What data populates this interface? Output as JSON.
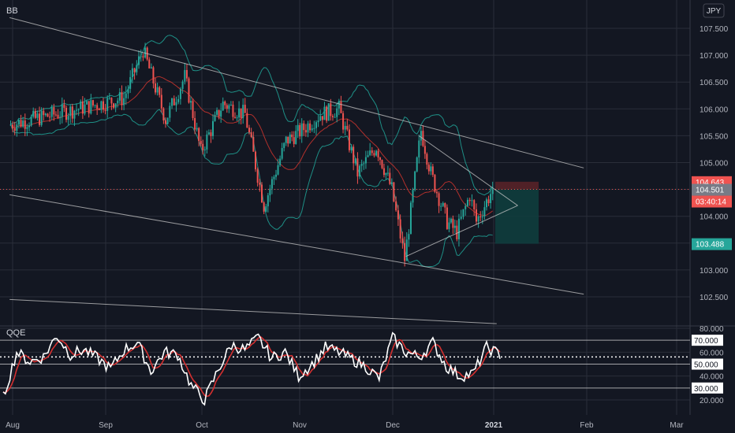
{
  "indicator_main": "BB",
  "indicator_sub": "QQE",
  "currency_button": "JPY",
  "colors": {
    "background": "#131722",
    "grid": "#2a2e39",
    "candle_up": "#26a69a",
    "candle_down": "#ef5350",
    "bb_band": "#1e8f86",
    "bb_basis": "#b2302c",
    "trendline": "#c8c8c8",
    "stop_zone": "#5c2328",
    "target_zone": "#0f3d3d",
    "qqe_fast": "#ffffff",
    "qqe_slow": "#d32f2f",
    "qqe_green": "#22c55e"
  },
  "price_axis": {
    "ticks": [
      "107.500",
      "107.000",
      "106.500",
      "106.000",
      "105.500",
      "105.000",
      "104.500",
      "104.000",
      "103.500",
      "103.000",
      "102.500"
    ],
    "labels": {
      "stop": "104.643",
      "current": "104.501",
      "countdown": "03:40:14",
      "target": "103.488"
    }
  },
  "qqe_axis": {
    "ticks": [
      "80.000",
      "60.000",
      "40.000",
      "20.000"
    ],
    "labels": [
      "70.000",
      "50.000",
      "30.000"
    ]
  },
  "time_axis": [
    "Aug",
    "Sep",
    "Oct",
    "Nov",
    "Dec",
    "2021",
    "Feb",
    "Mar"
  ],
  "chart_data": [
    {
      "type": "candlestick",
      "title": "BB",
      "x_range": [
        "Aug",
        "Mar"
      ],
      "ylim": [
        102.3,
        107.6
      ],
      "yticks": [
        102.5,
        103.0,
        103.5,
        104.0,
        104.5,
        105.0,
        105.5,
        106.0,
        106.5,
        107.0,
        107.5
      ],
      "key_points": [
        {
          "x": "Jul 31",
          "price": 105.7
        },
        {
          "x": "Aug 7",
          "price": 106.2
        },
        {
          "x": "Aug 13",
          "price": 107.1
        },
        {
          "x": "Aug 20",
          "price": 105.8
        },
        {
          "x": "Aug 26",
          "price": 106.6
        },
        {
          "x": "Sep 1",
          "price": 105.2
        },
        {
          "x": "Sep 8",
          "price": 106.1
        },
        {
          "x": "Sep 15",
          "price": 105.9
        },
        {
          "x": "Sep 21",
          "price": 104.2
        },
        {
          "x": "Sep 28",
          "price": 105.4
        },
        {
          "x": "Oct 2",
          "price": 105.6
        },
        {
          "x": "Oct 8",
          "price": 105.9
        },
        {
          "x": "Oct 14",
          "price": 106.0
        },
        {
          "x": "Oct 20",
          "price": 104.8
        },
        {
          "x": "Oct 26",
          "price": 105.3
        },
        {
          "x": "Nov 1",
          "price": 104.5
        },
        {
          "x": "Nov 5",
          "price": 103.2
        },
        {
          "x": "Nov 10",
          "price": 105.6
        },
        {
          "x": "Nov 13",
          "price": 104.8
        },
        {
          "x": "Nov 18",
          "price": 103.9
        },
        {
          "x": "Nov 21",
          "price": 103.7
        },
        {
          "x": "Nov 25",
          "price": 104.4
        },
        {
          "x": "Nov 27",
          "price": 103.9
        },
        {
          "x": "Dec 1",
          "price": 104.5
        }
      ],
      "last_price": 104.501,
      "position": {
        "stop": 104.643,
        "entry": 104.501,
        "target": 103.488
      },
      "trendlines": [
        {
          "name": "channel-top",
          "from": {
            "x": "Jul 31",
            "price": 107.7
          },
          "to": {
            "x": "Dec 31",
            "price": 104.9
          }
        },
        {
          "name": "channel-bottom",
          "from": {
            "x": "Jul 31",
            "price": 104.4
          },
          "to": {
            "x": "Dec 31",
            "price": 102.55
          }
        },
        {
          "name": "wedge-top",
          "from": {
            "x": "Nov 9",
            "price": 105.5
          },
          "to": {
            "x": "Dec 9",
            "price": 104.2
          }
        },
        {
          "name": "wedge-bottom",
          "from": {
            "x": "Nov 5",
            "price": 103.25
          },
          "to": {
            "x": "Dec 9",
            "price": 104.2
          }
        },
        {
          "name": "lower-line",
          "from": {
            "x": "Jul 31",
            "price": 102.45
          },
          "to": {
            "x": "Dec 2",
            "price": 102.0
          }
        }
      ]
    },
    {
      "type": "line",
      "title": "QQE",
      "ylim": [
        12,
        84
      ],
      "yticks": [
        20,
        40,
        60,
        80
      ],
      "levels": [
        70,
        50,
        30
      ],
      "series": [
        {
          "values": [
            22,
            60,
            52,
            56,
            74,
            58,
            62,
            55,
            46,
            62,
            68,
            44,
            60,
            58,
            32,
            20,
            45,
            66,
            62,
            72,
            55,
            60,
            40,
            50,
            64,
            60,
            54,
            48,
            38,
            72,
            60,
            56,
            68,
            48,
            40,
            42,
            64,
            58
          ]
        }
      ]
    }
  ]
}
